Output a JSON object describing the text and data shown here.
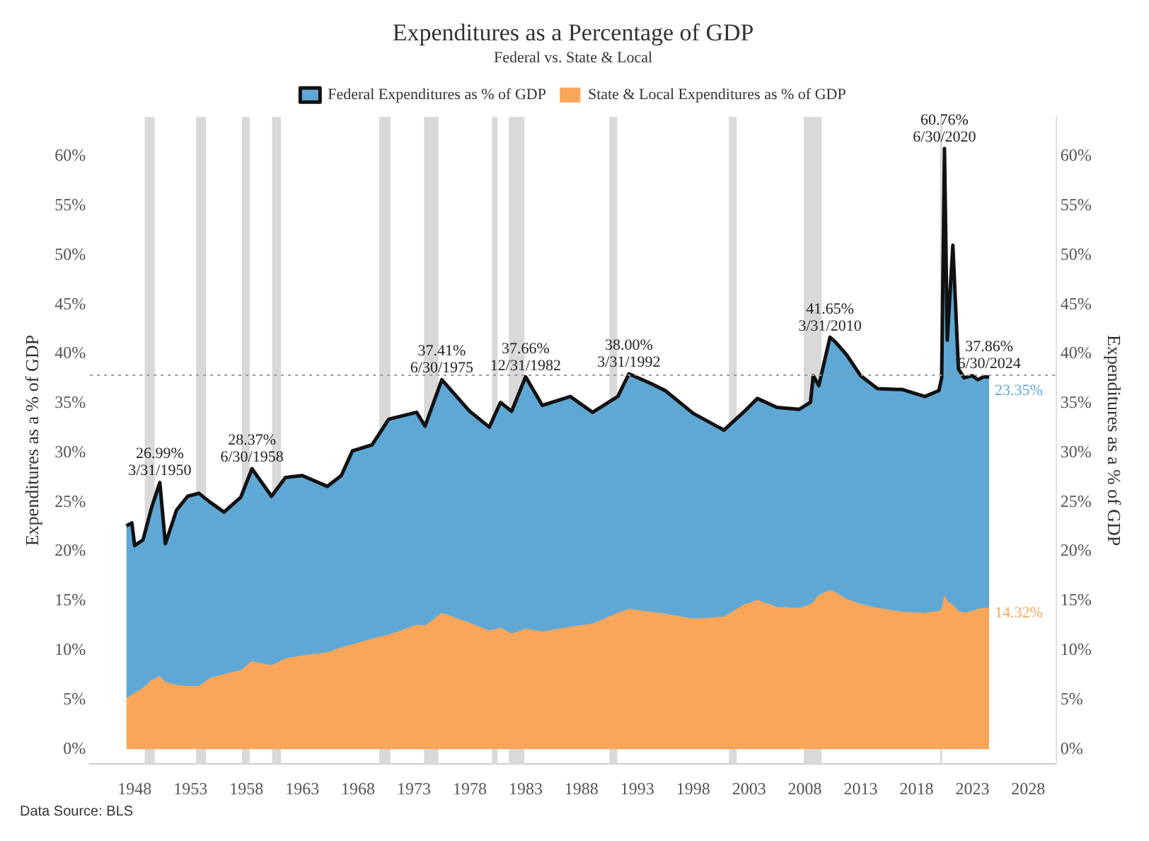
{
  "chart_data": {
    "type": "area",
    "title": "Expenditures as a Percentage of GDP",
    "subtitle": "Federal vs. State & Local",
    "ylabel": "Expenditures as a % of GDP",
    "y2label": "Expenditures as a % of GDP",
    "stacked": true,
    "legend": "top",
    "x": [
      1947.25,
      1947.75,
      1948.0,
      1948.75,
      1949.5,
      1950.25,
      1950.75,
      1951.75,
      1952.75,
      1953.75,
      1954.75,
      1956.0,
      1957.5,
      1958.5,
      1960.25,
      1961.5,
      1963.0,
      1965.25,
      1966.5,
      1967.5,
      1969.25,
      1970.75,
      1973.25,
      1974.0,
      1975.5,
      1978.0,
      1979.75,
      1980.75,
      1981.75,
      1983.0,
      1984.5,
      1987.0,
      1989.0,
      1991.25,
      1992.25,
      1994.25,
      1995.5,
      1998.0,
      2000.75,
      2002.5,
      2003.75,
      2005.5,
      2007.5,
      2008.5,
      2008.75,
      2009.25,
      2010.25,
      2010.75,
      2011.75,
      2013.0,
      2014.5,
      2016.75,
      2018.75,
      2020.0,
      2020.25,
      2020.5,
      2020.75,
      2021.25,
      2021.75,
      2022.25,
      2023.0,
      2023.5,
      2024.0,
      2024.5
    ],
    "series": [
      {
        "name": "State & Local Expenditures as % of GDP",
        "color": "#f9a65a",
        "values": [
          5.2,
          5.5,
          5.7,
          6.2,
          7.0,
          7.4,
          6.8,
          6.5,
          6.4,
          6.4,
          7.2,
          7.6,
          8.0,
          8.9,
          8.5,
          9.2,
          9.5,
          9.8,
          10.3,
          10.6,
          11.2,
          11.6,
          12.6,
          12.5,
          13.8,
          12.8,
          12.0,
          12.3,
          11.7,
          12.2,
          11.9,
          12.4,
          12.7,
          13.8,
          14.2,
          13.9,
          13.7,
          13.2,
          13.4,
          14.6,
          15.1,
          14.4,
          14.3,
          14.7,
          14.9,
          15.6,
          16.1,
          15.9,
          15.2,
          14.7,
          14.3,
          13.9,
          13.8,
          14.0,
          14.2,
          15.6,
          15.0,
          14.6,
          14.0,
          13.8,
          14.0,
          14.2,
          14.3,
          14.32
        ],
        "value_labels": [
          null,
          null,
          null,
          null,
          null,
          null,
          null,
          null,
          null,
          null,
          null,
          null,
          null,
          null,
          null,
          null,
          null,
          null,
          null,
          null,
          null,
          null,
          null,
          null,
          null,
          null,
          null,
          null,
          null,
          null,
          null,
          null,
          null,
          null,
          null,
          null,
          null,
          null,
          null,
          null,
          null,
          null,
          null,
          null,
          null,
          null,
          null,
          null,
          null,
          null,
          null,
          null,
          null,
          null,
          null,
          null,
          null,
          null,
          null,
          null,
          null,
          null,
          null,
          "14.32%"
        ]
      },
      {
        "name": "Federal Expenditures as % of GDP",
        "color": "#5fa8d6",
        "values": [
          17.4,
          17.4,
          14.9,
          15.0,
          17.4,
          19.6,
          14.0,
          17.7,
          19.2,
          19.5,
          17.8,
          16.4,
          17.5,
          19.5,
          17.1,
          18.3,
          18.2,
          16.8,
          17.4,
          19.6,
          19.6,
          21.8,
          21.5,
          20.2,
          23.6,
          21.4,
          20.6,
          22.8,
          22.5,
          25.5,
          22.9,
          23.3,
          21.4,
          21.9,
          23.8,
          23.1,
          22.6,
          20.8,
          18.9,
          19.5,
          20.4,
          20.2,
          20.1,
          20.4,
          22.9,
          21.2,
          25.6,
          25.3,
          24.7,
          23.1,
          22.2,
          22.5,
          21.9,
          22.3,
          23.4,
          45.2,
          26.4,
          36.4,
          24.5,
          23.8,
          23.8,
          23.2,
          23.4,
          23.35
        ],
        "value_labels": [
          null,
          null,
          null,
          null,
          null,
          null,
          null,
          null,
          null,
          null,
          null,
          null,
          null,
          null,
          null,
          null,
          null,
          null,
          null,
          null,
          null,
          null,
          null,
          null,
          null,
          null,
          null,
          null,
          null,
          null,
          null,
          null,
          null,
          null,
          null,
          null,
          null,
          null,
          null,
          null,
          null,
          null,
          null,
          null,
          null,
          null,
          null,
          null,
          null,
          null,
          null,
          null,
          null,
          null,
          null,
          null,
          null,
          null,
          null,
          null,
          null,
          null,
          null,
          "23.35%"
        ]
      }
    ],
    "xlim": [
      1944,
      2030.5
    ],
    "xticks": [
      1948,
      1953,
      1958,
      1963,
      1968,
      1973,
      1978,
      1983,
      1988,
      1993,
      1998,
      2003,
      2008,
      2013,
      2018,
      2023,
      2028
    ],
    "ylim": [
      -1.5,
      64
    ],
    "yticks": [
      {
        "value": 0,
        "label": "0%"
      },
      {
        "value": 5,
        "label": "5%"
      },
      {
        "value": 10,
        "label": "10%"
      },
      {
        "value": 15,
        "label": "15%"
      },
      {
        "value": 20,
        "label": "20%"
      },
      {
        "value": 25,
        "label": "25%"
      },
      {
        "value": 30,
        "label": "30%"
      },
      {
        "value": 35,
        "label": "35%"
      },
      {
        "value": 40,
        "label": "40%"
      },
      {
        "value": 45,
        "label": "45%"
      },
      {
        "value": 50,
        "label": "50%"
      },
      {
        "value": 55,
        "label": "55%"
      },
      {
        "value": 60,
        "label": "60%"
      }
    ],
    "y2lim": [
      -1.5,
      64
    ],
    "y2ticks": [
      {
        "value": 0,
        "label": "0%"
      },
      {
        "value": 5,
        "label": "5%"
      },
      {
        "value": 10,
        "label": "10%"
      },
      {
        "value": 15,
        "label": "15%"
      },
      {
        "value": 20,
        "label": "20%"
      },
      {
        "value": 25,
        "label": "25%"
      },
      {
        "value": 30,
        "label": "30%"
      },
      {
        "value": 35,
        "label": "35%"
      },
      {
        "value": 40,
        "label": "40%"
      },
      {
        "value": 45,
        "label": "45%"
      },
      {
        "value": 50,
        "label": "50%"
      },
      {
        "value": 55,
        "label": "55%"
      },
      {
        "value": 60,
        "label": "60%"
      }
    ],
    "grid": false,
    "ref_lines": [
      {
        "axis": "y",
        "value": 37.86,
        "color": "#999999",
        "line_style": "dotted"
      }
    ],
    "bands": [
      {
        "axis": "x",
        "from": 1948.9,
        "to": 1949.8,
        "color": "#d9d9d9"
      },
      {
        "axis": "x",
        "from": 1953.5,
        "to": 1954.4,
        "color": "#d9d9d9"
      },
      {
        "axis": "x",
        "from": 1957.6,
        "to": 1958.3,
        "color": "#d9d9d9"
      },
      {
        "axis": "x",
        "from": 1960.3,
        "to": 1961.1,
        "color": "#d9d9d9"
      },
      {
        "axis": "x",
        "from": 1969.9,
        "to": 1970.9,
        "color": "#d9d9d9"
      },
      {
        "axis": "x",
        "from": 1973.9,
        "to": 1975.2,
        "color": "#d9d9d9"
      },
      {
        "axis": "x",
        "from": 1980.0,
        "to": 1980.5,
        "color": "#d9d9d9"
      },
      {
        "axis": "x",
        "from": 1981.5,
        "to": 1982.9,
        "color": "#d9d9d9"
      },
      {
        "axis": "x",
        "from": 1990.5,
        "to": 1991.2,
        "color": "#d9d9d9"
      },
      {
        "axis": "x",
        "from": 2001.2,
        "to": 2001.9,
        "color": "#d9d9d9"
      },
      {
        "axis": "x",
        "from": 2007.9,
        "to": 2009.5,
        "color": "#d9d9d9"
      },
      {
        "axis": "x",
        "from": 2020.1,
        "to": 2020.3,
        "color": "#d9d9d9"
      }
    ],
    "annotations": [
      {
        "text": "26.99%\n3/31/1950",
        "x": 1950.25,
        "y": 26.99
      },
      {
        "text": "28.37%\n6/30/1958",
        "x": 1958.5,
        "y": 28.37
      },
      {
        "text": "37.41%\n6/30/1975",
        "x": 1975.5,
        "y": 37.41
      },
      {
        "text": "37.66%\n12/31/1982",
        "x": 1983.0,
        "y": 37.66
      },
      {
        "text": "38.00%\n3/31/1992",
        "x": 1992.25,
        "y": 38.0
      },
      {
        "text": "41.65%\n3/31/2010",
        "x": 2010.25,
        "y": 41.65
      },
      {
        "text": "60.76%\n6/30/2020",
        "x": 2020.5,
        "y": 60.76
      },
      {
        "text": "37.86%\n6/30/2024",
        "x": 2024.5,
        "y": 37.86
      },
      "Data Source: BLS"
    ]
  }
}
